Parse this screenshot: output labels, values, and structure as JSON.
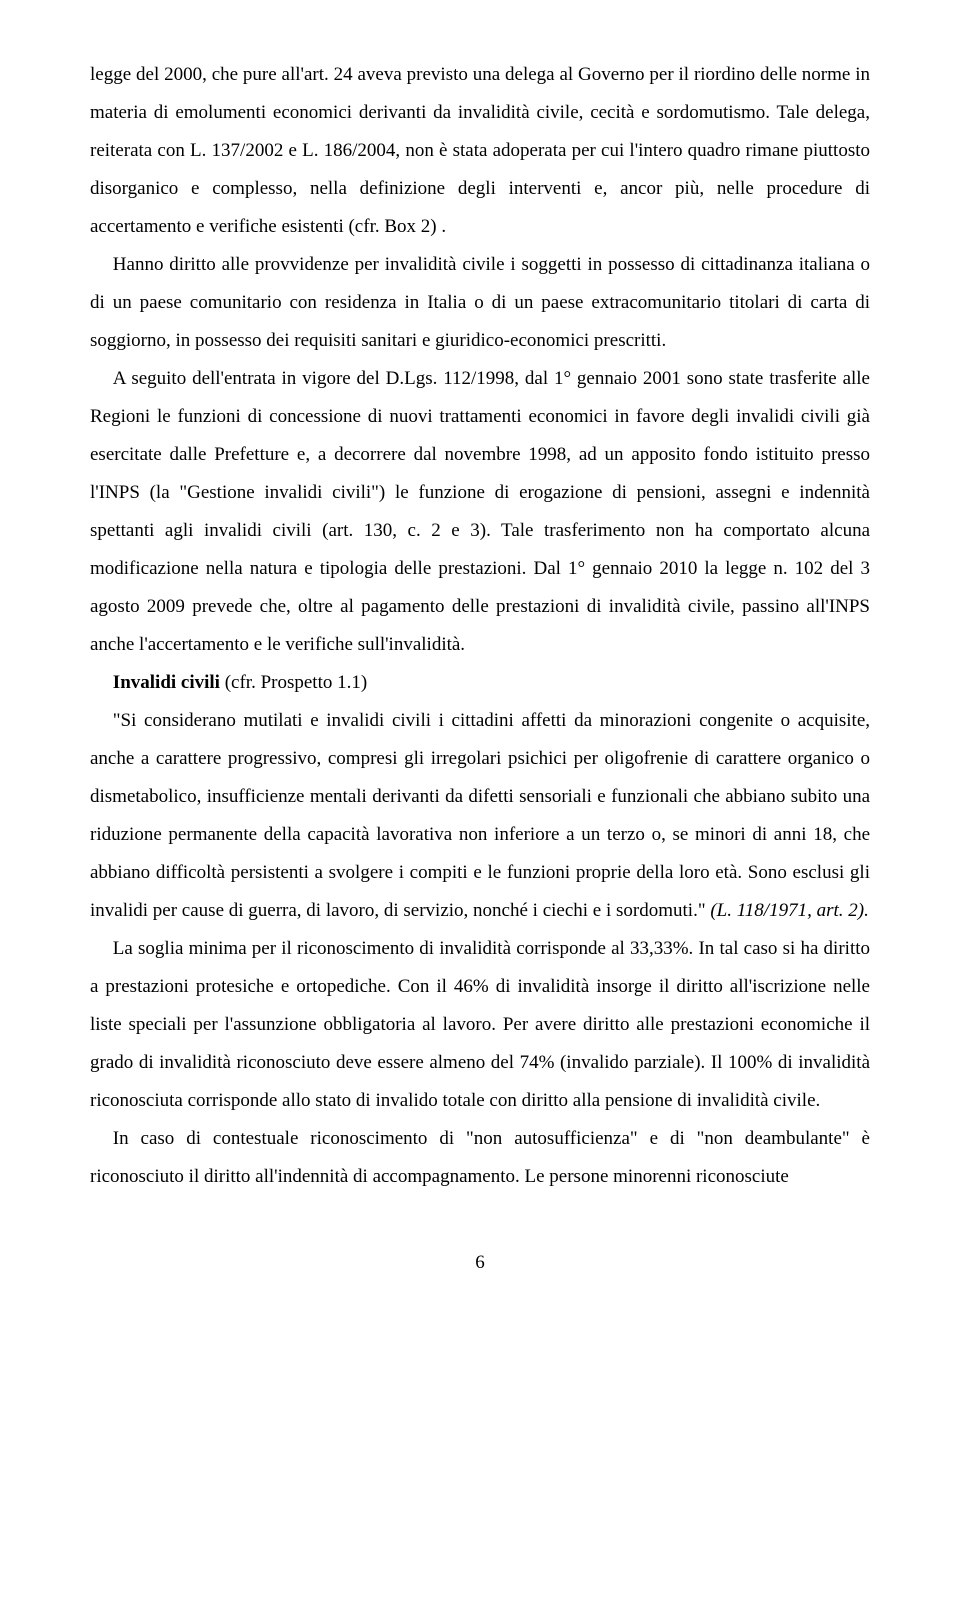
{
  "p1": "legge del 2000, che pure all'art. 24 aveva previsto una delega al Governo per il riordino delle norme in materia di emolumenti economici derivanti da invalidità civile, cecità e sordomutismo. Tale delega, reiterata con L. 137/2002 e L. 186/2004, non è stata adoperata per cui l'intero quadro rimane piuttosto disorganico e complesso, nella definizione degli interventi e, ancor più, nelle procedure di accertamento e verifiche esistenti (cfr. Box 2) .",
  "p2": "Hanno diritto alle provvidenze per invalidità civile i soggetti in possesso di cittadinanza italiana o di un paese comunitario con residenza in Italia o di un paese extracomunitario titolari di carta di soggiorno, in possesso dei requisiti sanitari e giuridico-economici prescritti.",
  "p3": "A seguito dell'entrata in vigore del D.Lgs. 112/1998, dal 1° gennaio 2001 sono state trasferite alle Regioni le funzioni di concessione di nuovi trattamenti economici in favore degli invalidi civili già esercitate dalle Prefetture e, a decorrere dal novembre 1998, ad un apposito fondo istituito presso l'INPS (la \"Gestione invalidi civili\") le funzione di erogazione di pensioni, assegni e indennità spettanti agli invalidi civili (art. 130, c. 2 e 3). Tale trasferimento non ha comportato alcuna modificazione nella natura e tipologia delle prestazioni. Dal 1° gennaio 2010 la legge n. 102 del 3 agosto 2009 prevede che, oltre al pagamento delle prestazioni di invalidità civile, passino all'INPS anche l'accertamento e le verifiche sull'invalidità.",
  "p4_bold": "Invalidi civili",
  "p4_rest": " (cfr. Prospetto 1.1)",
  "p5a": "\"Si considerano mutilati e invalidi civili i cittadini affetti da minorazioni congenite o acquisite, anche a carattere progressivo, compresi gli irregolari psichici per oligofrenie di carattere organico o dismetabolico, insufficienze mentali derivanti da difetti sensoriali e funzionali che abbiano subito una riduzione permanente della capacità lavorativa non inferiore a un terzo o, se minori di anni 18, che abbiano difficoltà persistenti a svolgere i compiti e le funzioni proprie della loro età. Sono esclusi gli invalidi per cause di guerra, di lavoro, di servizio, nonché i ciechi e i sordomuti.\" ",
  "p5b": "(L. 118/1971, art. 2).",
  "p6": "La soglia minima per il riconoscimento di invalidità corrisponde al 33,33%. In tal caso si ha diritto a prestazioni protesiche e ortopediche. Con il 46% di invalidità insorge il diritto all'iscrizione nelle liste speciali per l'assunzione obbligatoria al lavoro. Per avere diritto alle prestazioni economiche il grado di invalidità riconosciuto deve essere almeno del 74% (invalido parziale). Il 100% di invalidità riconosciuta corrisponde allo stato di invalido totale con diritto alla pensione di invalidità civile.",
  "p7": "In caso di contestuale riconoscimento di \"non autosufficienza\" e di \"non deambulante\" è riconosciuto il diritto all'indennità di accompagnamento. Le persone minorenni riconosciute",
  "page_number": "6"
}
